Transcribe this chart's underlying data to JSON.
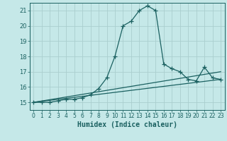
{
  "title": "",
  "xlabel": "Humidex (Indice chaleur)",
  "xlim": [
    -0.5,
    23.5
  ],
  "ylim": [
    14.5,
    21.5
  ],
  "yticks": [
    15,
    16,
    17,
    18,
    19,
    20,
    21
  ],
  "xticks": [
    0,
    1,
    2,
    3,
    4,
    5,
    6,
    7,
    8,
    9,
    10,
    11,
    12,
    13,
    14,
    15,
    16,
    17,
    18,
    19,
    20,
    21,
    22,
    23
  ],
  "bg_color": "#c5e8e8",
  "grid_color": "#aacece",
  "line_color": "#1a6060",
  "series1_x": [
    0,
    1,
    2,
    3,
    4,
    5,
    6,
    7,
    8,
    9,
    10,
    11,
    12,
    13,
    14,
    15,
    16,
    17,
    18,
    19,
    20,
    21,
    22,
    23
  ],
  "series1_y": [
    15,
    15,
    15,
    15.1,
    15.2,
    15.2,
    15.3,
    15.5,
    15.9,
    16.6,
    18.0,
    20.0,
    20.3,
    21.0,
    21.3,
    21.0,
    17.5,
    17.2,
    17.0,
    16.5,
    16.4,
    17.3,
    16.6,
    16.5
  ],
  "series2_x": [
    0,
    23
  ],
  "series2_y": [
    15,
    17.0
  ],
  "series3_x": [
    0,
    23
  ],
  "series3_y": [
    15,
    16.5
  ]
}
